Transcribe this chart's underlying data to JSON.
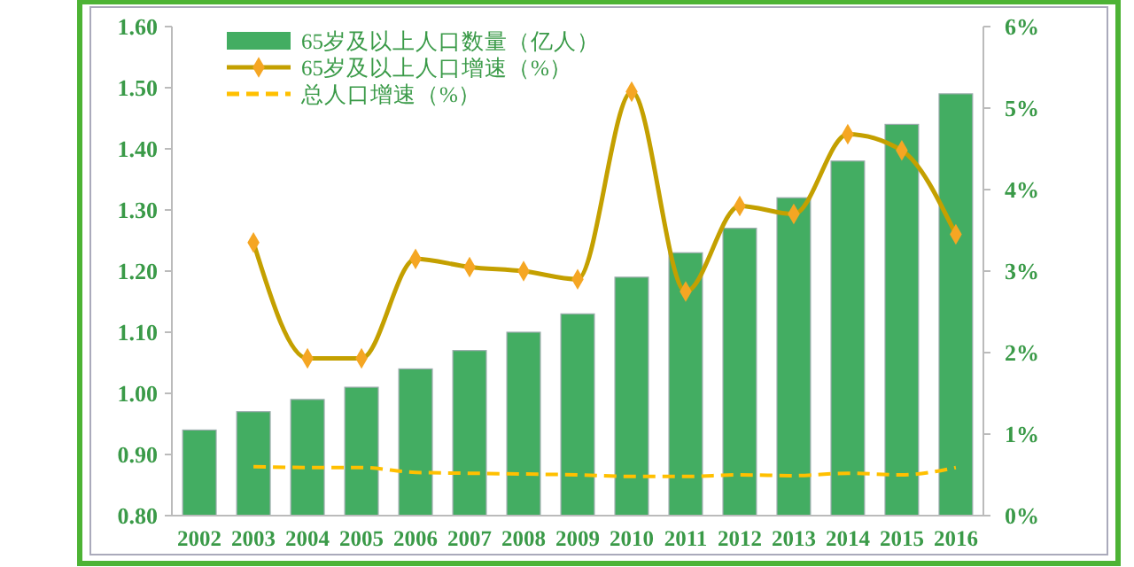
{
  "chart_data": {
    "type": "bar",
    "categories": [
      "2002",
      "2003",
      "2004",
      "2005",
      "2006",
      "2007",
      "2008",
      "2009",
      "2010",
      "2011",
      "2012",
      "2013",
      "2014",
      "2015",
      "2016"
    ],
    "series": [
      {
        "name": "65岁及以上人口数量（亿人）",
        "color": "#43ad62",
        "values": [
          0.94,
          0.97,
          0.99,
          1.01,
          1.04,
          1.07,
          1.1,
          1.13,
          1.19,
          1.23,
          1.27,
          1.32,
          1.38,
          1.44,
          1.49
        ]
      },
      {
        "name": "65岁及以上人口增速（%）",
        "type": "line",
        "axis": "y2",
        "color": "#c4a000",
        "marker": "diamond",
        "line_style": "solid",
        "values": [
          null,
          3.35,
          1.93,
          1.93,
          3.15,
          3.05,
          3.0,
          2.9,
          5.2,
          2.75,
          3.8,
          3.7,
          4.68,
          4.48,
          3.45
        ]
      },
      {
        "name": "总人口增速（%）",
        "type": "line",
        "axis": "y2",
        "color": "#ffc000",
        "marker": "none",
        "line_style": "dashed",
        "values": [
          null,
          0.6,
          0.59,
          0.59,
          0.53,
          0.52,
          0.51,
          0.5,
          0.48,
          0.48,
          0.5,
          0.49,
          0.52,
          0.5,
          0.59
        ]
      }
    ],
    "ylim": [
      0.8,
      1.6
    ],
    "yticks": [
      {
        "value": 0.8,
        "label": "0.80"
      },
      {
        "value": 0.9,
        "label": "0.90"
      },
      {
        "value": 1.0,
        "label": "1.00"
      },
      {
        "value": 1.1,
        "label": "1.10"
      },
      {
        "value": 1.2,
        "label": "1.20"
      },
      {
        "value": 1.3,
        "label": "1.30"
      },
      {
        "value": 1.4,
        "label": "1.40"
      },
      {
        "value": 1.5,
        "label": "1.50"
      },
      {
        "value": 1.6,
        "label": "1.60"
      }
    ],
    "y2lim": [
      0,
      6
    ],
    "y2ticks": [
      {
        "value": 0,
        "label": "0%"
      },
      {
        "value": 1,
        "label": "1%"
      },
      {
        "value": 2,
        "label": "2%"
      },
      {
        "value": 3,
        "label": "3%"
      },
      {
        "value": 4,
        "label": "4%"
      },
      {
        "value": 5,
        "label": "5%"
      },
      {
        "value": 6,
        "label": "6%"
      }
    ],
    "grid": false,
    "legend": "top left"
  }
}
